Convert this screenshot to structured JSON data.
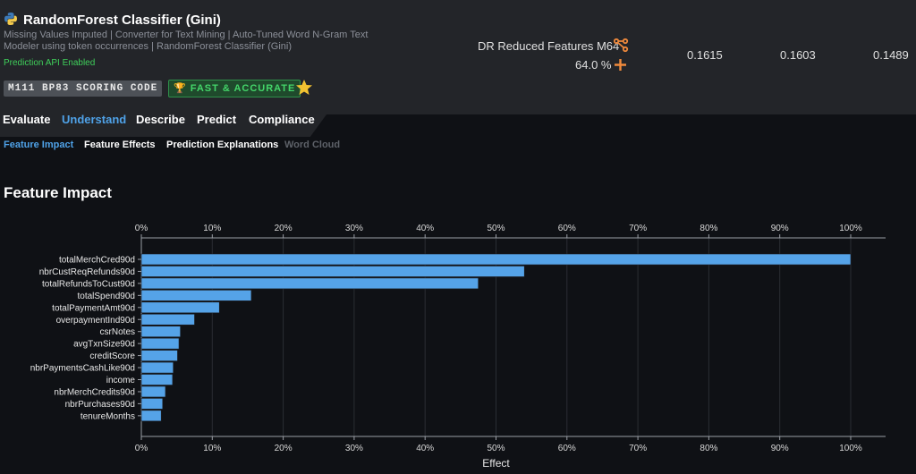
{
  "model": {
    "title": "RandomForest Classifier (Gini)",
    "description": "Missing Values Imputed | Converter for Text Mining | Auto-Tuned Word N-Gram Text Modeler using token occurrences | RandomForest Classifier (Gini)",
    "api_status": "Prediction API Enabled",
    "badge_code": "M111 BP83 SCORING CODE",
    "badge_fast": "FAST & ACCURATE"
  },
  "feature_list": {
    "name": "DR Reduced Features M64",
    "sample_pct": "64.0 %"
  },
  "metrics": [
    "0.1615",
    "0.1603",
    "0.1489"
  ],
  "tabs": [
    {
      "label": "Evaluate",
      "active": false
    },
    {
      "label": "Understand",
      "active": true
    },
    {
      "label": "Describe",
      "active": false
    },
    {
      "label": "Predict",
      "active": false
    },
    {
      "label": "Compliance",
      "active": false
    }
  ],
  "subtabs": [
    {
      "label": "Feature Impact",
      "state": "active"
    },
    {
      "label": "Feature Effects",
      "state": "normal"
    },
    {
      "label": "Prediction Explanations",
      "state": "normal"
    },
    {
      "label": "Word Cloud",
      "state": "disabled"
    }
  ],
  "section_title": "Feature Impact",
  "colors": {
    "accent": "#4fa2e8",
    "bar": "#55a3e8",
    "success": "#3fcf5a",
    "icon_orange": "#f08a3c"
  },
  "chart_data": {
    "type": "bar",
    "orientation": "horizontal",
    "xlabel": "Effect",
    "xlim": [
      0,
      100
    ],
    "x_ticks": [
      "0%",
      "10%",
      "20%",
      "30%",
      "40%",
      "50%",
      "60%",
      "70%",
      "80%",
      "90%",
      "100%"
    ],
    "categories": [
      "totalMerchCred90d",
      "nbrCustReqRefunds90d",
      "totalRefundsToCust90d",
      "totalSpend90d",
      "totalPaymentAmt90d",
      "overpaymentInd90d",
      "csrNotes",
      "avgTxnSize90d",
      "creditScore",
      "nbrPaymentsCashLike90d",
      "income",
      "nbrMerchCredits90d",
      "nbrPurchases90d",
      "tenureMonths"
    ],
    "values": [
      100,
      54,
      47.5,
      15.5,
      11,
      7.5,
      5.5,
      5.3,
      5.1,
      4.5,
      4.4,
      3.4,
      3.0,
      2.8
    ]
  }
}
